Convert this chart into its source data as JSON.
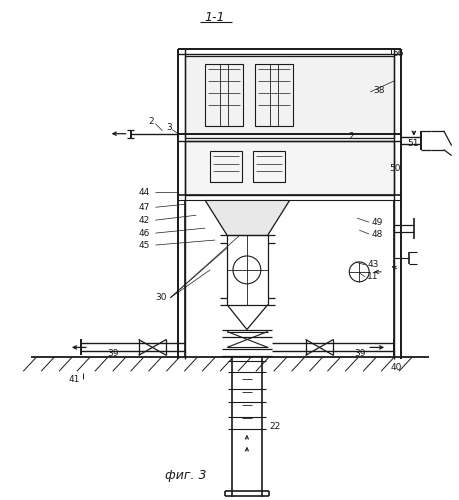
{
  "title": "1-1",
  "caption": "фиг. 3",
  "bg_color": "#ffffff",
  "line_color": "#1a1a1a",
  "lw_main": 1.2,
  "lw_med": 0.9,
  "lw_thin": 0.6
}
